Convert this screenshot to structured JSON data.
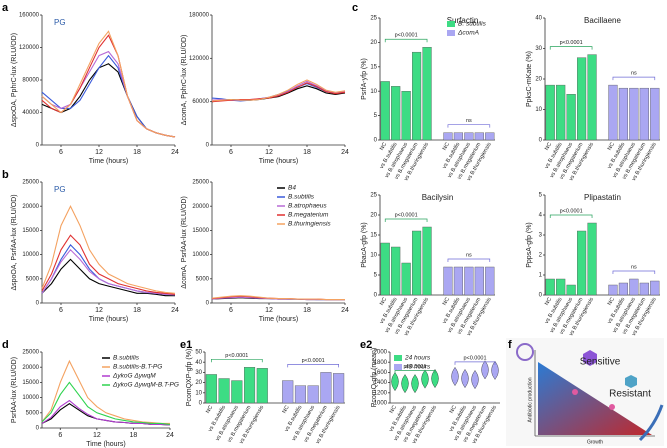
{
  "panels": [
    "a",
    "b",
    "c",
    "d",
    "e1",
    "e2",
    "f"
  ],
  "diagram": {
    "sensitive": "Sensitive",
    "resistant": "Resistant",
    "y_label": "Antibiotic production",
    "x_label": "Growth"
  },
  "chart_data": [
    {
      "type": "line",
      "y_label": "ΔspoOA, PphrC-lux (RLU/OD)",
      "x_label": "Time (hours)",
      "annotations": [
        "PG"
      ],
      "x": [
        3,
        4.5,
        6,
        7.5,
        9,
        10.5,
        12,
        13.5,
        15,
        16.5,
        18,
        19.5,
        21,
        22.5,
        24
      ],
      "xlim": [
        3,
        24
      ],
      "xticks": [
        6,
        12,
        18,
        24
      ],
      "ylim": [
        0,
        160000
      ],
      "yticks": [
        0,
        40000,
        80000,
        120000,
        160000
      ],
      "series": [
        {
          "color": "#000000",
          "values": [
            50000,
            45000,
            40000,
            45000,
            60000,
            80000,
            95000,
            100000,
            90000,
            60000,
            35000,
            20000,
            15000,
            12000,
            10000
          ]
        },
        {
          "color": "#3b5bdb",
          "values": [
            65000,
            55000,
            45000,
            45000,
            55000,
            75000,
            95000,
            110000,
            95000,
            60000,
            35000,
            20000,
            15000,
            12000,
            10000
          ]
        },
        {
          "color": "#b86bd6",
          "values": [
            60000,
            50000,
            45000,
            50000,
            70000,
            90000,
            110000,
            115000,
            100000,
            60000,
            30000,
            20000,
            15000,
            12000,
            10000
          ]
        },
        {
          "color": "#e03131",
          "values": [
            55000,
            45000,
            40000,
            50000,
            70000,
            95000,
            120000,
            135000,
            110000,
            60000,
            30000,
            20000,
            15000,
            12000,
            10000
          ]
        },
        {
          "color": "#f4a261",
          "values": [
            60000,
            50000,
            40000,
            50000,
            75000,
            100000,
            125000,
            140000,
            110000,
            60000,
            30000,
            20000,
            15000,
            12000,
            10000
          ]
        }
      ]
    },
    {
      "type": "line",
      "y_label": "ΔcomA, PphrC-lux (RLU/OD)",
      "x_label": "Time (hours)",
      "x": [
        3,
        4.5,
        6,
        7.5,
        9,
        10.5,
        12,
        13.5,
        15,
        16.5,
        18,
        19.5,
        21,
        22.5,
        24
      ],
      "xlim": [
        3,
        24
      ],
      "xticks": [
        6,
        12,
        18,
        24
      ],
      "ylim": [
        0,
        180000
      ],
      "yticks": [
        0,
        60000,
        120000,
        180000
      ],
      "series": [
        {
          "color": "#000000",
          "values": [
            60000,
            62000,
            63000,
            62000,
            62000,
            63000,
            65000,
            67000,
            72000,
            78000,
            82000,
            78000,
            72000,
            70000,
            72000
          ]
        },
        {
          "color": "#3b5bdb",
          "values": [
            65000,
            64000,
            62000,
            61000,
            62000,
            64000,
            66000,
            70000,
            75000,
            80000,
            85000,
            80000,
            74000,
            72000,
            73000
          ]
        },
        {
          "color": "#b86bd6",
          "values": [
            62000,
            63000,
            62000,
            62000,
            63000,
            64000,
            66000,
            69000,
            74000,
            82000,
            88000,
            82000,
            75000,
            72000,
            74000
          ]
        },
        {
          "color": "#e03131",
          "values": [
            60000,
            61000,
            62000,
            63000,
            63000,
            64000,
            65000,
            68000,
            73000,
            80000,
            86000,
            81000,
            74000,
            71000,
            73000
          ]
        },
        {
          "color": "#f4a261",
          "values": [
            61000,
            62000,
            63000,
            62000,
            62000,
            63000,
            66000,
            70000,
            76000,
            84000,
            90000,
            84000,
            76000,
            73000,
            75000
          ]
        }
      ]
    },
    {
      "type": "line",
      "y_label": "ΔspoOA, PsrfAA-lux (RLU/OD)",
      "x_label": "Time (hours)",
      "annotations": [
        "PG"
      ],
      "x": [
        3,
        4.5,
        6,
        7.5,
        9,
        10.5,
        12,
        13.5,
        15,
        16.5,
        18,
        19.5,
        21,
        22.5,
        24
      ],
      "xlim": [
        3,
        24
      ],
      "xticks": [
        6,
        12,
        18,
        24
      ],
      "ylim": [
        0,
        25000
      ],
      "yticks": [
        0,
        5000,
        10000,
        15000,
        20000,
        25000
      ],
      "series": [
        {
          "color": "#000000",
          "values": [
            2000,
            4000,
            7000,
            9000,
            7000,
            5000,
            4000,
            3500,
            3000,
            2500,
            2000,
            2000,
            1800,
            1500,
            1500
          ]
        },
        {
          "color": "#3b5bdb",
          "values": [
            2000,
            5000,
            9000,
            12000,
            10000,
            7000,
            5000,
            4000,
            3500,
            3000,
            2500,
            2200,
            2000,
            1800,
            1700
          ]
        },
        {
          "color": "#b86bd6",
          "values": [
            2000,
            5000,
            8500,
            11000,
            9000,
            6500,
            5000,
            4000,
            3500,
            3000,
            2500,
            2200,
            2000,
            1800,
            1700
          ]
        },
        {
          "color": "#e03131",
          "values": [
            2500,
            6000,
            11000,
            14000,
            12000,
            8000,
            6000,
            5000,
            4000,
            3500,
            3000,
            2500,
            2200,
            2000,
            1800
          ]
        },
        {
          "color": "#f4a261",
          "values": [
            3000,
            8000,
            16000,
            20000,
            16000,
            11000,
            8000,
            6000,
            5000,
            4000,
            3500,
            3000,
            2500,
            2200,
            2000
          ]
        }
      ]
    },
    {
      "type": "line",
      "y_label": "ΔcomA, PsrfAA-lux (RLU/OD)",
      "x_label": "Time (hours)",
      "legend": "upper right",
      "x": [
        3,
        4.5,
        6,
        7.5,
        9,
        10.5,
        12,
        13.5,
        15,
        16.5,
        18,
        19.5,
        21,
        22.5,
        24
      ],
      "xlim": [
        3,
        24
      ],
      "xticks": [
        6,
        12,
        18,
        24
      ],
      "ylim": [
        0,
        25000
      ],
      "yticks": [
        0,
        5000,
        10000,
        15000,
        20000,
        25000
      ],
      "series": [
        {
          "name": "B4",
          "color": "#000000",
          "values": [
            800,
            900,
            1000,
            1100,
            1000,
            900,
            900,
            800,
            800,
            800,
            700,
            700,
            700,
            700,
            700
          ]
        },
        {
          "name": "B.subtilis",
          "color": "#3b5bdb",
          "values": [
            900,
            1000,
            1200,
            1300,
            1200,
            1000,
            900,
            900,
            800,
            800,
            800,
            700,
            700,
            700,
            700
          ]
        },
        {
          "name": "B.atrophaeus",
          "color": "#b86bd6",
          "values": [
            800,
            1000,
            1100,
            1200,
            1100,
            1000,
            900,
            800,
            800,
            800,
            700,
            700,
            700,
            700,
            700
          ]
        },
        {
          "name": "B.megaterium",
          "color": "#e03131",
          "values": [
            900,
            1100,
            1300,
            1400,
            1300,
            1100,
            1000,
            900,
            900,
            800,
            800,
            800,
            700,
            700,
            700
          ]
        },
        {
          "name": "B.thuringiensis",
          "color": "#f4a261",
          "values": [
            1000,
            1200,
            1400,
            1500,
            1400,
            1200,
            1000,
            900,
            900,
            800,
            800,
            800,
            700,
            700,
            700
          ]
        }
      ]
    },
    {
      "type": "bar",
      "title": "Surfactin",
      "y_label": "PsrfA-yfp (%)",
      "legend": "upper right",
      "annotations": [
        "p<0.0001",
        "ns"
      ],
      "categories": [
        "NC",
        "vs B.subtilis",
        "vs B.atrophaeus",
        "vs B.megaterium",
        "vs B.thuringiensis"
      ],
      "ylim": [
        0,
        25
      ],
      "yticks": [
        0,
        5,
        10,
        15,
        20,
        25
      ],
      "series": [
        {
          "name": "B. subtilis",
          "color": "#3ddc84",
          "values": [
            12,
            11,
            10,
            18,
            19
          ]
        },
        {
          "name": "ΔcomA",
          "color": "#aaa7f2",
          "values": [
            1.5,
            1.5,
            1.5,
            1.5,
            1.5
          ]
        }
      ]
    },
    {
      "type": "bar",
      "title": "Bacillaene",
      "y_label": "PpksC-mKate (%)",
      "annotations": [
        "p<0.0001",
        "ns"
      ],
      "categories": [
        "NC",
        "vs B.subtilis",
        "vs B.atrophaeus",
        "vs B.megaterium",
        "vs B.thuringiensis"
      ],
      "ylim": [
        0,
        40
      ],
      "yticks": [
        0,
        10,
        20,
        30,
        40
      ],
      "series": [
        {
          "color": "#3ddc84",
          "values": [
            18,
            18,
            15,
            27,
            28
          ]
        },
        {
          "color": "#aaa7f2",
          "values": [
            18,
            17,
            17,
            17,
            17
          ]
        }
      ]
    },
    {
      "type": "bar",
      "title": "Bacilysin",
      "y_label": "PbacA-gfp (%)",
      "annotations": [
        "p<0.0001",
        "ns"
      ],
      "categories": [
        "NC",
        "vs B.subtilis",
        "vs B.atrophaeus",
        "vs B.megaterium",
        "vs B.thuringiensis"
      ],
      "ylim": [
        0,
        25
      ],
      "yticks": [
        0,
        5,
        10,
        15,
        20,
        25
      ],
      "series": [
        {
          "color": "#3ddc84",
          "values": [
            13,
            12,
            8,
            16,
            17
          ]
        },
        {
          "color": "#aaa7f2",
          "values": [
            7,
            7,
            7,
            7,
            7
          ]
        }
      ]
    },
    {
      "type": "bar",
      "title": "Plipastatin",
      "y_label": "PppsA-gfp (%)",
      "annotations": [
        "p<0.0001",
        "ns"
      ],
      "categories": [
        "NC",
        "vs B.subtilis",
        "vs B.atrophaeus",
        "vs B.megaterium",
        "vs B.thuringiensis"
      ],
      "ylim": [
        0,
        5
      ],
      "yticks": [
        0,
        1,
        2,
        3,
        4,
        5
      ],
      "series": [
        {
          "color": "#3ddc84",
          "values": [
            0.8,
            0.8,
            0.5,
            3.2,
            3.6
          ]
        },
        {
          "color": "#aaa7f2",
          "values": [
            0.5,
            0.6,
            0.8,
            0.6,
            0.7
          ]
        }
      ]
    },
    {
      "type": "line",
      "y_label": "PsrfAA-lux (RLU/OD)",
      "x_label": "Time (hours)",
      "legend": "upper right",
      "x": [
        3,
        4.5,
        6,
        7.5,
        9,
        10.5,
        12,
        13.5,
        15,
        16.5,
        18,
        19.5,
        21,
        22.5,
        24
      ],
      "xlim": [
        3,
        24
      ],
      "xticks": [
        6,
        12,
        18,
        24
      ],
      "ylim": [
        0,
        25000
      ],
      "yticks": [
        0,
        5000,
        10000,
        15000,
        20000,
        25000
      ],
      "series": [
        {
          "name": "B.subtilis",
          "color": "#000000",
          "values": [
            1500,
            3000,
            6000,
            8000,
            6000,
            4000,
            3000,
            2500,
            2000,
            1800,
            1500,
            1500,
            1200,
            1200,
            1000
          ]
        },
        {
          "name": "B.subtilis-B.T-PG",
          "color": "#f4a261",
          "values": [
            2000,
            6000,
            15000,
            22000,
            16000,
            10000,
            7000,
            5000,
            4000,
            3000,
            2500,
            2000,
            1800,
            1500,
            1500
          ]
        },
        {
          "name": "ΔykoG ΔywqM",
          "color": "#b03ccf",
          "values": [
            1500,
            3500,
            7000,
            9000,
            6500,
            4500,
            3000,
            2500,
            2000,
            1800,
            1500,
            1500,
            1200,
            1200,
            1000
          ]
        },
        {
          "name": "ΔykoG ΔywqM-B.T-PG",
          "color": "#2fd34f",
          "values": [
            2000,
            5000,
            11000,
            15000,
            11000,
            7000,
            5000,
            4000,
            3000,
            2500,
            2000,
            1800,
            1500,
            1500,
            1200
          ]
        }
      ]
    },
    {
      "type": "bar",
      "y_label": "PcomQXP-gfp (%)",
      "annotations": [
        "p<0.0001",
        "p<0.0001"
      ],
      "categories": [
        "NC",
        "vs B.subtilis",
        "vs B.atrophaeus",
        "vs B.megaterium",
        "vs B.thuringiensis"
      ],
      "ylim": [
        0,
        50
      ],
      "yticks": [
        0,
        10,
        20,
        30,
        40,
        50
      ],
      "series": [
        {
          "color": "#3ddc84",
          "values": [
            28,
            24,
            22,
            35,
            34
          ]
        },
        {
          "color": "#aaa7f2",
          "values": [
            22,
            17,
            17,
            30,
            29
          ]
        }
      ]
    },
    {
      "type": "violin",
      "y_label": "PcomQ-gfp (mean)",
      "legend": "upper left",
      "annotations": [
        "p<0.0001",
        "p<0.0001"
      ],
      "categories": [
        "NC",
        "vs B.subtilis",
        "vs B.atrophaeus",
        "vs B.megaterium",
        "vs B.thuringiensis"
      ],
      "ylim": [
        1000,
        2000
      ],
      "yticks": [
        1000,
        1200,
        1400,
        1600,
        1800,
        2000
      ],
      "series": [
        {
          "name": "24 hours",
          "color": "#3ddc84",
          "values": [
            1420,
            1380,
            1380,
            1470,
            1480
          ]
        },
        {
          "name": "48 hours",
          "color": "#aaa7f2",
          "values": [
            1520,
            1480,
            1460,
            1650,
            1640
          ]
        }
      ]
    }
  ]
}
